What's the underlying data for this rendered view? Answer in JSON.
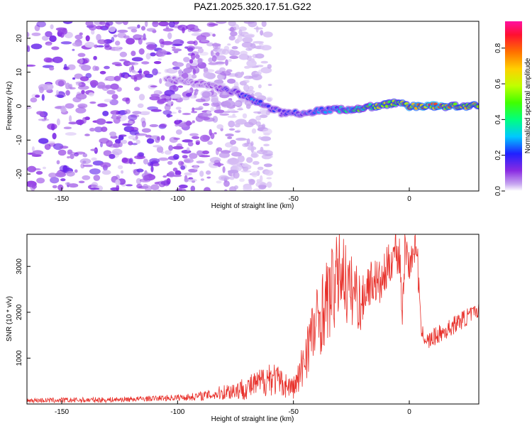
{
  "chart_data": [
    {
      "type": "heatmap",
      "title": "PAZ1.2025.320.17.51.G22",
      "xlabel": "Height of straight line (km)",
      "ylabel": "Frequency (Hz)",
      "xlim": [
        -165,
        30
      ],
      "ylim": [
        -25,
        25
      ],
      "xticks": [
        -150,
        -100,
        -50,
        0
      ],
      "yticks": [
        -20,
        -10,
        0,
        10,
        20
      ],
      "colorbar": {
        "label": "Normalized spectral amplitude",
        "range": [
          0,
          0.95
        ],
        "ticks": [
          0.0,
          0.2,
          0.4,
          0.6,
          0.8
        ]
      },
      "ridge": {
        "x": [
          -105,
          -95,
          -85,
          -75,
          -65,
          -55,
          -45,
          -35,
          -25,
          -15,
          -5,
          0,
          10,
          20,
          30
        ],
        "y": [
          8,
          7,
          6,
          4,
          1,
          -2,
          -2,
          -1,
          -1,
          0,
          1,
          0,
          0,
          0,
          0
        ],
        "amplitude": [
          0.1,
          0.1,
          0.12,
          0.2,
          0.3,
          0.2,
          0.25,
          0.3,
          0.45,
          0.6,
          0.7,
          0.8,
          0.9,
          0.8,
          0.7
        ]
      },
      "noise_region": {
        "x_range": [
          -165,
          -80
        ],
        "y_range": [
          -25,
          25
        ],
        "amplitude": 0.05
      }
    },
    {
      "type": "line",
      "title": "",
      "xlabel": "Height of straight line (km)",
      "ylabel": "SNR (10 * v/v)",
      "xlim": [
        -165,
        30
      ],
      "ylim": [
        0,
        3700
      ],
      "xticks": [
        -150,
        -100,
        -50,
        0
      ],
      "yticks": [
        1000,
        2000,
        3000
      ],
      "series": [
        {
          "name": "SNR",
          "color": "#e8302a",
          "x": [
            -165,
            -150,
            -130,
            -110,
            -95,
            -85,
            -78,
            -70,
            -65,
            -60,
            -55,
            -50,
            -47,
            -44,
            -41,
            -38,
            -35,
            -32,
            -29,
            -26,
            -23,
            -21,
            -20,
            -18,
            -15,
            -12,
            -10,
            -8,
            -6,
            -4,
            -3,
            -2,
            -1,
            0,
            1,
            2,
            3,
            4,
            5,
            8,
            12,
            16,
            20,
            25,
            30
          ],
          "y": [
            80,
            80,
            90,
            120,
            150,
            200,
            280,
            350,
            450,
            600,
            450,
            350,
            600,
            1300,
            1600,
            2000,
            2300,
            2600,
            3000,
            2400,
            2500,
            2100,
            2300,
            2600,
            2700,
            2600,
            2900,
            3100,
            3400,
            3200,
            1900,
            3300,
            3400,
            3000,
            3200,
            3300,
            3500,
            2800,
            1600,
            1350,
            1500,
            1600,
            1750,
            1900,
            2050
          ],
          "noise": [
            50,
            60,
            60,
            60,
            80,
            120,
            200,
            260,
            300,
            420,
            300,
            250,
            500,
            700,
            800,
            900,
            950,
            1000,
            900,
            900,
            700,
            700,
            500,
            500,
            500,
            500,
            500,
            450,
            450,
            700,
            200,
            600,
            300,
            400,
            300,
            300,
            300,
            500,
            150,
            200,
            200,
            200,
            200,
            200,
            150
          ]
        }
      ]
    }
  ]
}
